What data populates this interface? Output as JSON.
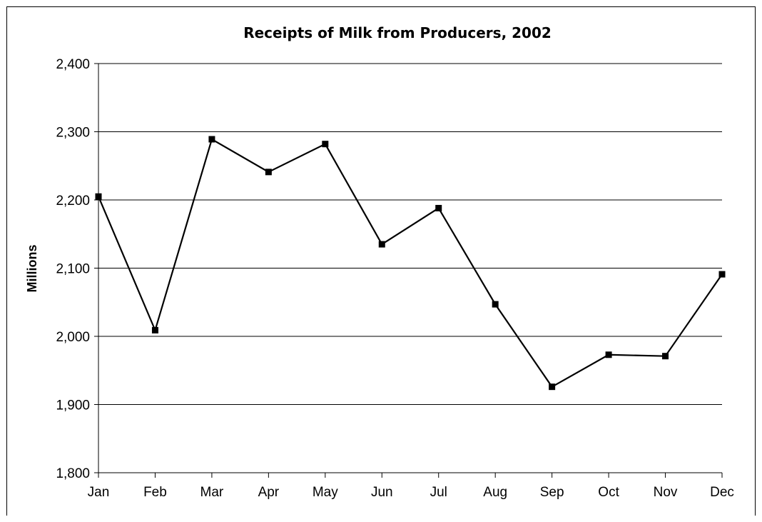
{
  "chart_data": {
    "type": "line",
    "title": "Receipts of Milk from Producers, 2002",
    "xlabel": "",
    "ylabel": "Millions",
    "categories": [
      "Jan",
      "Feb",
      "Mar",
      "Apr",
      "May",
      "Jun",
      "Jul",
      "Aug",
      "Sep",
      "Oct",
      "Nov",
      "Dec"
    ],
    "series": [
      {
        "values": [
          2205,
          2009,
          2289,
          2241,
          2282,
          2135,
          2188,
          2047,
          1926,
          1973,
          1971,
          2091
        ],
        "color": "#000000",
        "marker": "square"
      }
    ],
    "ylim": [
      1800,
      2400
    ],
    "yticks": [
      1800,
      1900,
      2000,
      2100,
      2200,
      2300,
      2400
    ],
    "ytick_labels": [
      "1,800",
      "1,900",
      "2,000",
      "2,100",
      "2,200",
      "2,300",
      "2,400"
    ],
    "grid": "horizontal",
    "legend": "none"
  }
}
